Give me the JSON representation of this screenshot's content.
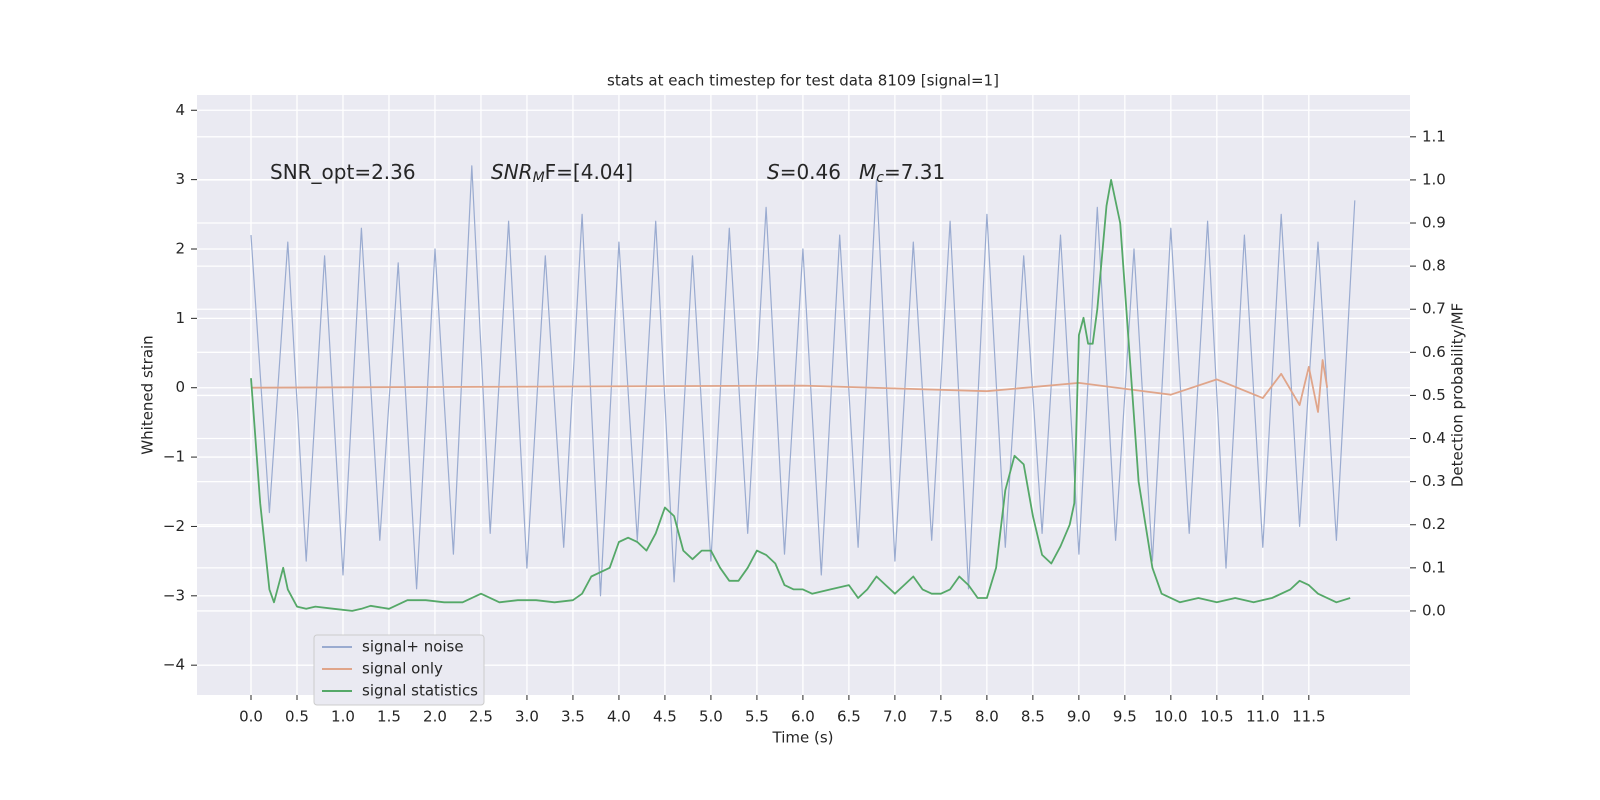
{
  "chart_data": {
    "type": "line",
    "title": "stats at each timestep for test data 8109 [signal=1]",
    "x_label": "Time (s)",
    "y_label": "Whitened strain",
    "y2_label": "Detection probability/MF",
    "xlim": [
      -0.587,
      12.6
    ],
    "ylim": [
      -4.43,
      4.22
    ],
    "y2lim": [
      -0.195,
      1.197
    ],
    "xticks": [
      {
        "value": 0,
        "label": "0.0"
      },
      0.5,
      {
        "value": 1,
        "label": "1.0"
      },
      1.5,
      {
        "value": 2,
        "label": "2.0"
      },
      2.5,
      {
        "value": 3,
        "label": "3.0"
      },
      3.5,
      {
        "value": 4,
        "label": "4.0"
      },
      4.5,
      {
        "value": 5,
        "label": "5.0"
      },
      5.5,
      {
        "value": 6,
        "label": "6.0"
      },
      6.5,
      {
        "value": 7,
        "label": "7.0"
      },
      7.5,
      {
        "value": 8,
        "label": "8.0"
      },
      8.5,
      {
        "value": 9,
        "label": "9.0"
      },
      9.5,
      {
        "value": 10,
        "label": "10.0"
      },
      10.5,
      {
        "value": 11,
        "label": "11.0"
      },
      11.5
    ],
    "yticks": [
      {
        "value": -4,
        "label": "−4"
      },
      {
        "value": -3,
        "label": "−3"
      },
      {
        "value": -2,
        "label": "−2"
      },
      {
        "value": -1,
        "label": "−1"
      },
      0,
      1,
      2,
      3,
      4
    ],
    "y2ticks": [
      {
        "value": 0,
        "label": "0.0"
      },
      0.1,
      0.2,
      0.3,
      0.4,
      0.5,
      0.6,
      0.7,
      0.8,
      0.9,
      {
        "value": 1,
        "label": "1.0"
      },
      1.1
    ],
    "grid": true,
    "legend": "lower left",
    "annotations": [
      {
        "text": "SNR_opt=2.36"
      },
      {
        "base": "SNR",
        "sub": "M",
        "rest": "F=[4.04]"
      },
      {
        "base": "S",
        "rest": "=0.46"
      },
      {
        "base": "M",
        "sub": "c",
        "rest": "=7.31"
      }
    ],
    "series": [
      {
        "name": "signal+ noise",
        "color": "#9aabd0",
        "x": [
          0,
          0.2,
          0.4,
          0.6,
          0.8,
          1,
          1.2,
          1.4,
          1.6,
          1.8,
          2,
          2.2,
          2.4,
          2.6,
          2.8,
          3,
          3.2,
          3.4,
          3.6,
          3.8,
          4,
          4.2,
          4.4,
          4.6,
          4.8,
          5,
          5.2,
          5.4,
          5.6,
          5.8,
          6,
          6.2,
          6.4,
          6.6,
          6.8,
          7,
          7.2,
          7.4,
          7.6,
          7.8,
          8,
          8.2,
          8.4,
          8.6,
          8.8,
          9,
          9.2,
          9.4,
          9.6,
          9.8,
          10,
          10.2,
          10.4,
          10.6,
          10.8,
          11,
          11.2,
          11.4,
          11.6,
          11.8,
          12
        ],
        "values": [
          2.2,
          -1.8,
          2.1,
          -2.5,
          1.9,
          -2.7,
          2.3,
          -2.2,
          1.8,
          -2.9,
          2.0,
          -2.4,
          3.2,
          -2.1,
          2.4,
          -2.6,
          1.9,
          -2.3,
          2.5,
          -3.0,
          2.1,
          -2.2,
          2.4,
          -2.8,
          1.9,
          -2.5,
          2.3,
          -2.1,
          2.6,
          -2.4,
          2.0,
          -2.7,
          2.2,
          -2.3,
          3.0,
          -2.5,
          2.1,
          -2.2,
          2.4,
          -2.9,
          2.5,
          -2.3,
          1.9,
          -2.1,
          2.2,
          -2.4,
          2.6,
          -2.2,
          2.0,
          -2.5,
          2.3,
          -2.1,
          2.4,
          -2.6,
          2.2,
          -2.3,
          2.5,
          -2.0,
          2.1,
          -2.2,
          2.7
        ]
      },
      {
        "name": "signal only",
        "color": "#e0a58a",
        "x": [
          0,
          6,
          8,
          9,
          10,
          10.5,
          11,
          11.2,
          11.4,
          11.5,
          11.6,
          11.65,
          11.7
        ],
        "values": [
          0,
          0.03,
          -0.05,
          0.07,
          -0.1,
          0.12,
          -0.15,
          0.2,
          -0.25,
          0.3,
          -0.35,
          0.4,
          0
        ]
      },
      {
        "name": "signal statistics",
        "color": "#55a868",
        "axis": "y2",
        "x": [
          0,
          0.1,
          0.2,
          0.25,
          0.35,
          0.4,
          0.5,
          0.6,
          0.7,
          0.9,
          1.1,
          1.2,
          1.3,
          1.5,
          1.7,
          1.9,
          2.1,
          2.3,
          2.5,
          2.7,
          2.9,
          3.1,
          3.3,
          3.5,
          3.6,
          3.7,
          3.9,
          4.0,
          4.1,
          4.2,
          4.3,
          4.4,
          4.5,
          4.6,
          4.7,
          4.8,
          4.9,
          5.0,
          5.1,
          5.2,
          5.3,
          5.4,
          5.5,
          5.6,
          5.7,
          5.8,
          5.9,
          6.0,
          6.1,
          6.3,
          6.5,
          6.6,
          6.7,
          6.8,
          6.9,
          7.0,
          7.1,
          7.2,
          7.3,
          7.4,
          7.5,
          7.6,
          7.7,
          7.8,
          7.9,
          8.0,
          8.1,
          8.2,
          8.3,
          8.4,
          8.5,
          8.6,
          8.7,
          8.8,
          8.9,
          8.95,
          9.0,
          9.05,
          9.1,
          9.15,
          9.2,
          9.3,
          9.35,
          9.45,
          9.55,
          9.65,
          9.8,
          9.9,
          10.1,
          10.3,
          10.5,
          10.7,
          10.9,
          11.1,
          11.3,
          11.4,
          11.5,
          11.6,
          11.8,
          11.95
        ],
        "values": [
          0.54,
          0.25,
          0.05,
          0.02,
          0.1,
          0.05,
          0.01,
          0.005,
          0.01,
          0.005,
          0.0,
          0.005,
          0.012,
          0.005,
          0.025,
          0.025,
          0.02,
          0.02,
          0.04,
          0.02,
          0.025,
          0.025,
          0.02,
          0.025,
          0.04,
          0.08,
          0.1,
          0.16,
          0.17,
          0.16,
          0.14,
          0.18,
          0.24,
          0.22,
          0.14,
          0.12,
          0.14,
          0.14,
          0.1,
          0.07,
          0.07,
          0.1,
          0.14,
          0.13,
          0.11,
          0.06,
          0.05,
          0.05,
          0.04,
          0.05,
          0.06,
          0.03,
          0.05,
          0.08,
          0.06,
          0.04,
          0.06,
          0.08,
          0.05,
          0.04,
          0.04,
          0.05,
          0.08,
          0.06,
          0.03,
          0.03,
          0.1,
          0.28,
          0.36,
          0.34,
          0.22,
          0.13,
          0.11,
          0.15,
          0.2,
          0.25,
          0.64,
          0.68,
          0.62,
          0.62,
          0.7,
          0.94,
          1.0,
          0.9,
          0.6,
          0.3,
          0.1,
          0.04,
          0.02,
          0.03,
          0.02,
          0.03,
          0.02,
          0.03,
          0.05,
          0.07,
          0.06,
          0.04,
          0.02,
          0.03
        ]
      }
    ]
  }
}
